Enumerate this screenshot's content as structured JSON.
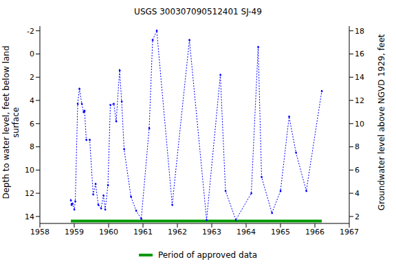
{
  "chart_data": {
    "type": "line",
    "title": "USGS 300307090512401 SJ-49",
    "y_label": "Depth to water level, feet below land surface",
    "y2_label": "Groundwater level above NGVD 1929, feet",
    "color": "#0000ff",
    "marker": "dot",
    "line_style": "dotted",
    "x": [
      1958.9,
      1958.92,
      1958.95,
      1959.0,
      1959.03,
      1959.1,
      1959.15,
      1959.22,
      1959.27,
      1959.3,
      1959.35,
      1959.45,
      1959.55,
      1959.62,
      1959.7,
      1959.78,
      1959.85,
      1959.9,
      1959.98,
      1960.05,
      1960.15,
      1960.22,
      1960.32,
      1960.38,
      1960.45,
      1960.65,
      1960.8,
      1960.95,
      1961.18,
      1961.28,
      1961.4,
      1961.85,
      1962.35,
      1962.85,
      1963.25,
      1963.4,
      1963.7,
      1964.15,
      1964.35,
      1964.45,
      1964.75,
      1965.0,
      1965.25,
      1965.45,
      1965.75,
      1966.2
    ],
    "values": [
      12.6,
      13.0,
      12.9,
      13.4,
      12.7,
      4.3,
      3.0,
      4.3,
      5.0,
      4.9,
      7.4,
      7.4,
      12.1,
      11.2,
      13.0,
      13.3,
      12.2,
      13.4,
      11.3,
      4.4,
      4.3,
      5.8,
      1.4,
      4.1,
      8.2,
      12.3,
      13.5,
      14.2,
      6.4,
      -1.2,
      -2.0,
      13.0,
      -1.2,
      14.3,
      1.8,
      11.8,
      14.3,
      12.0,
      -0.6,
      10.6,
      13.7,
      11.8,
      5.4,
      8.5,
      11.8,
      3.2
    ],
    "xlim": [
      1958,
      1967
    ],
    "xticks": [
      1958,
      1959,
      1960,
      1961,
      1962,
      1963,
      1964,
      1965,
      1966,
      1967
    ],
    "ylim": [
      -2.4,
      14.6
    ],
    "yticks": [
      -2,
      0,
      2,
      4,
      6,
      8,
      10,
      12,
      14
    ],
    "y2lim": [
      1.4,
      18.4
    ],
    "y2ticks": [
      2,
      4,
      6,
      8,
      10,
      12,
      14,
      16,
      18
    ],
    "approved_period": {
      "name": "Period of approved data",
      "color": "#009900",
      "x": [
        1958.9,
        1966.2
      ],
      "y": 14.4
    }
  }
}
